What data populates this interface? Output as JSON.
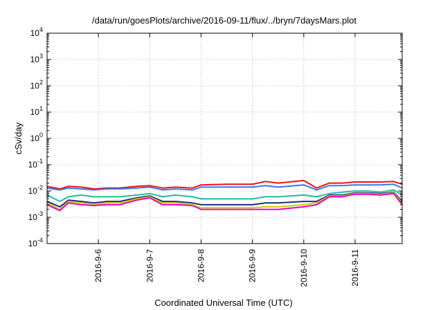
{
  "chart_data": {
    "type": "line",
    "title": "/data/run/goesPlots/archive/2016-09-11/flux/../bryn/7daysMars.plot",
    "xlabel": "Coordinated Universal Time (UTC)",
    "ylabel": "cSv/day",
    "yscale": "log",
    "ylim": [
      0.0001,
      10000
    ],
    "xlim": [
      "2016-09-05 00:00",
      "2016-09-11 22:00"
    ],
    "grid": true,
    "legend": "none",
    "y_ticks": [
      {
        "value": 0.0001,
        "base": "10",
        "exp": "-4"
      },
      {
        "value": 0.001,
        "base": "10",
        "exp": "-3"
      },
      {
        "value": 0.01,
        "base": "10",
        "exp": "-2"
      },
      {
        "value": 0.1,
        "base": "10",
        "exp": "-1"
      },
      {
        "value": 1,
        "base": "10",
        "exp": "0"
      },
      {
        "value": 10,
        "base": "10",
        "exp": "1"
      },
      {
        "value": 100,
        "base": "10",
        "exp": "2"
      },
      {
        "value": 1000,
        "base": "10",
        "exp": "3"
      },
      {
        "value": 10000,
        "base": "10",
        "exp": "4"
      }
    ],
    "x_ticks": [
      {
        "value": "2016-09-06 00:00",
        "label": "2016-9-6"
      },
      {
        "value": "2016-09-07 00:00",
        "label": "2016-9-7"
      },
      {
        "value": "2016-09-08 00:00",
        "label": "2016-9-8"
      },
      {
        "value": "2016-09-09 00:00",
        "label": "2016-9-9"
      },
      {
        "value": "2016-09-10 00:00",
        "label": "2016-9-10"
      },
      {
        "value": "2016-09-11 00:00",
        "label": "2016-9-11"
      }
    ],
    "x": [
      "2016-09-05 00:00",
      "2016-09-05 06:00",
      "2016-09-05 10:00",
      "2016-09-05 16:00",
      "2016-09-05 22:00",
      "2016-09-06 04:00",
      "2016-09-06 10:00",
      "2016-09-06 18:00",
      "2016-09-07 00:00",
      "2016-09-07 06:00",
      "2016-09-07 12:00",
      "2016-09-07 20:00",
      "2016-09-08 00:00",
      "2016-09-08 12:00",
      "2016-09-09 00:00",
      "2016-09-09 06:00",
      "2016-09-09 12:00",
      "2016-09-10 00:00",
      "2016-09-10 06:00",
      "2016-09-10 12:00",
      "2016-09-10 18:00",
      "2016-09-11 00:00",
      "2016-09-11 06:00",
      "2016-09-11 12:00",
      "2016-09-11 18:00",
      "2016-09-11 22:00"
    ],
    "series": [
      {
        "color": "#ee1111",
        "values": [
          0.015,
          0.012,
          0.015,
          0.014,
          0.012,
          0.013,
          0.013,
          0.015,
          0.016,
          0.013,
          0.014,
          0.013,
          0.017,
          0.018,
          0.018,
          0.023,
          0.02,
          0.025,
          0.013,
          0.02,
          0.02,
          0.022,
          0.022,
          0.022,
          0.023,
          0.018
        ]
      },
      {
        "color": "#3377ee",
        "values": [
          0.013,
          0.011,
          0.013,
          0.012,
          0.011,
          0.012,
          0.012,
          0.013,
          0.014,
          0.011,
          0.012,
          0.011,
          0.014,
          0.014,
          0.014,
          0.016,
          0.014,
          0.017,
          0.011,
          0.016,
          0.016,
          0.017,
          0.017,
          0.017,
          0.018,
          0.013
        ]
      },
      {
        "color": "#22bb99",
        "values": [
          0.007,
          0.004,
          0.006,
          0.007,
          0.006,
          0.006,
          0.006,
          0.007,
          0.008,
          0.006,
          0.007,
          0.006,
          0.005,
          0.005,
          0.005,
          0.006,
          0.006,
          0.007,
          0.006,
          0.008,
          0.009,
          0.01,
          0.01,
          0.009,
          0.011,
          0.007
        ]
      },
      {
        "color": "#1a2f7a",
        "values": [
          0.004,
          0.0025,
          0.0045,
          0.004,
          0.0035,
          0.004,
          0.004,
          0.0055,
          0.0065,
          0.004,
          0.004,
          0.0035,
          0.003,
          0.003,
          0.003,
          0.0035,
          0.0035,
          0.004,
          0.004,
          0.007,
          0.007,
          0.0085,
          0.0085,
          0.008,
          0.009,
          0.004
        ]
      },
      {
        "color": "#cccc00",
        "values": [
          0.0035,
          0.002,
          0.004,
          0.0035,
          0.003,
          0.0035,
          0.0035,
          0.005,
          0.006,
          0.0035,
          0.0035,
          0.003,
          0.0023,
          0.0023,
          0.0023,
          0.0025,
          0.0025,
          0.003,
          0.0035,
          0.0065,
          0.0065,
          0.008,
          0.008,
          0.0075,
          0.0085,
          0.0035
        ]
      },
      {
        "color": "#ee00cc",
        "values": [
          0.003,
          0.0018,
          0.0035,
          0.003,
          0.0028,
          0.003,
          0.003,
          0.0045,
          0.0055,
          0.003,
          0.003,
          0.0028,
          0.002,
          0.002,
          0.002,
          0.002,
          0.002,
          0.0025,
          0.003,
          0.006,
          0.006,
          0.0075,
          0.0075,
          0.007,
          0.008,
          0.003
        ]
      }
    ]
  }
}
